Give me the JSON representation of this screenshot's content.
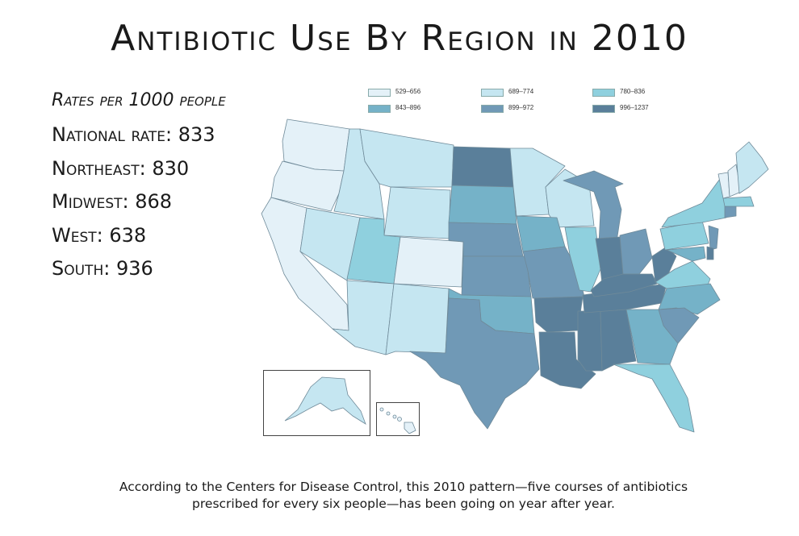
{
  "title": "Antibiotic Use By Region in 2010",
  "stats": {
    "subtitle": "Rates per 1000 people",
    "national": "National rate: 833",
    "northeast": "Northeast: 830",
    "midwest": "Midwest: 868",
    "west": "West: 638",
    "south": "South: 936"
  },
  "legend": [
    {
      "label": "529–656",
      "color": "#e4f1f8"
    },
    {
      "label": "689–774",
      "color": "#c5e6f1"
    },
    {
      "label": "780–836",
      "color": "#8fd0de"
    },
    {
      "label": "843–896",
      "color": "#75b2c8"
    },
    {
      "label": "899–972",
      "color": "#7099b6"
    },
    {
      "label": "996–1237",
      "color": "#5a7f9a"
    }
  ],
  "caption": {
    "line1": "According to the Centers for Disease Control, this 2010 pattern—five courses of antibiotics",
    "line2": "prescribed for every six people—has been going on year after year."
  }
}
